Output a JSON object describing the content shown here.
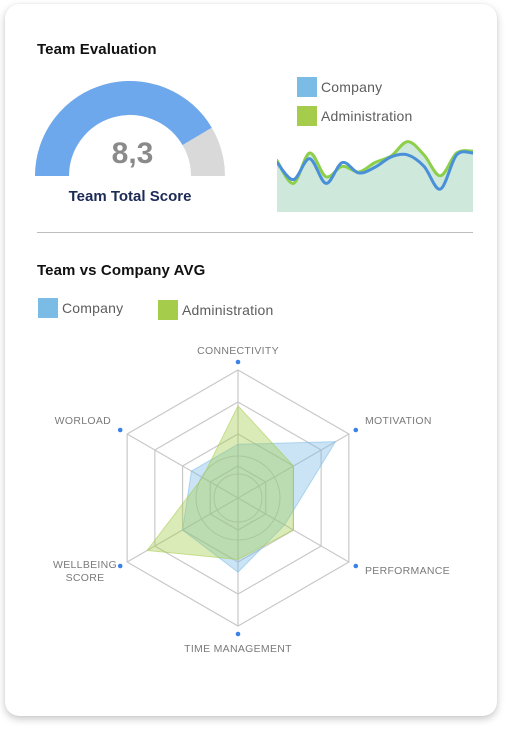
{
  "card": {
    "title": "Team Evaluation",
    "gauge": {
      "value": 8.3,
      "max": 10,
      "score_label": "8,3",
      "caption": "Team Total Score",
      "fill_color": "#6ea8ec",
      "track_color": "#d9d9d9"
    },
    "legend_top": [
      {
        "label": "Company",
        "color": "#7abce6"
      },
      {
        "label": "Administration",
        "color": "#a6cc4c"
      }
    ],
    "sparkline": {
      "company": [
        50,
        32,
        54,
        28,
        50,
        39,
        45,
        56,
        58,
        46,
        22,
        58,
        60
      ],
      "administration": [
        52,
        28,
        60,
        35,
        46,
        40,
        50,
        57,
        72,
        58,
        36,
        60,
        62
      ],
      "fill_color": "#cfe8dc",
      "company_color": "#4a90d9",
      "administration_color": "#8ccf4a"
    },
    "section2_title": "Team vs Company AVG",
    "legend_bottom": [
      {
        "label": "Company",
        "color": "#7abce6"
      },
      {
        "label": "Administration",
        "color": "#a6cc4c"
      }
    ]
  },
  "chart_data": {
    "type": "radar",
    "categories": [
      "CONNECTIVITY",
      "MOTIVATION",
      "PERFORMANCE",
      "TIME MANAGEMENT",
      "WELLBEING SCORE",
      "WORLOAD"
    ],
    "category_label_lines": [
      [
        "CONNECTIVITY"
      ],
      [
        "MOTIVATION"
      ],
      [
        "PERFORMANCE"
      ],
      [
        "TIME MANAGEMENT"
      ],
      [
        "WELLBEING",
        "SCORE"
      ],
      [
        "WORLOAD"
      ]
    ],
    "series": [
      {
        "name": "Company",
        "values": [
          42,
          88,
          42,
          58,
          50,
          42
        ],
        "color": "#7abce6"
      },
      {
        "name": "Administration",
        "values": [
          72,
          50,
          50,
          48,
          82,
          32
        ],
        "color": "#a6cc4c"
      }
    ],
    "rmax": 100,
    "grid_levels": 4,
    "grid": true,
    "legend": "top-left"
  }
}
